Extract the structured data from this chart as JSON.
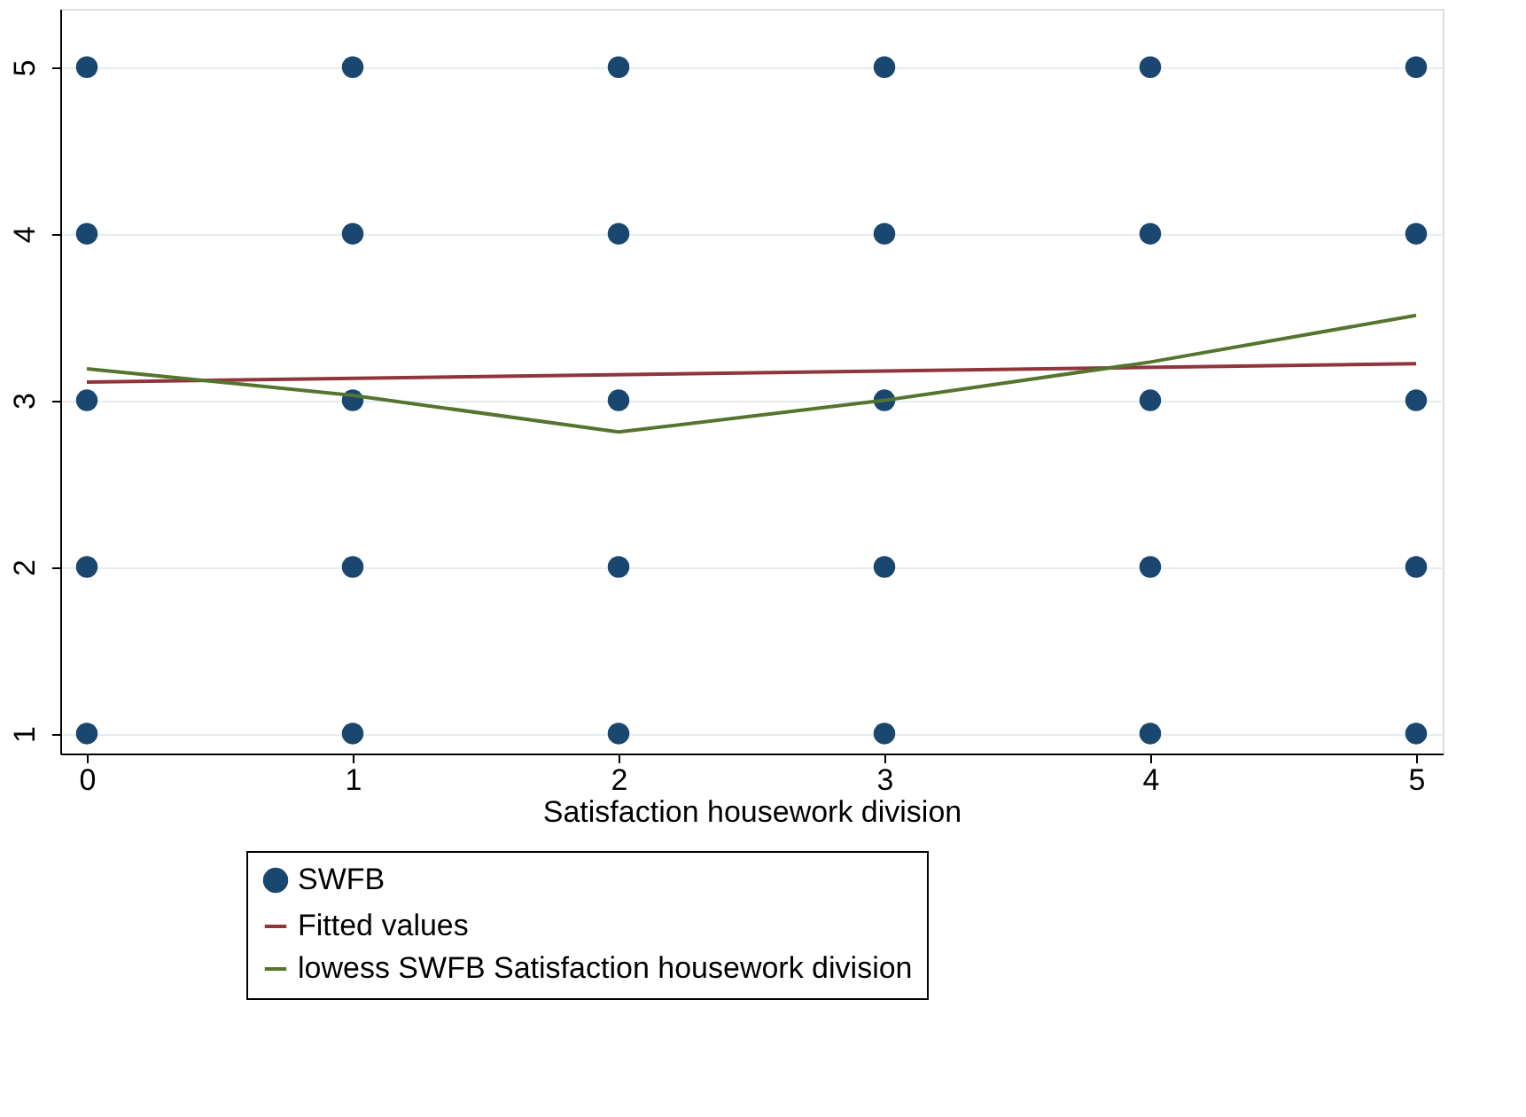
{
  "chart_data": {
    "type": "scatter",
    "xlabel": "Satisfaction housework division",
    "xlim": [
      -0.1,
      5.1
    ],
    "xticks": [
      0,
      1,
      2,
      3,
      4,
      5
    ],
    "ylim": [
      0.88,
      5.35
    ],
    "yticks": [
      1,
      2,
      3,
      4,
      5
    ],
    "grid": "y",
    "legend": "bottom",
    "series": [
      {
        "name": "SWFB",
        "marker": "circle",
        "color": "#1a476f",
        "x": [
          0,
          0,
          0,
          0,
          0,
          1,
          1,
          1,
          1,
          1,
          2,
          2,
          2,
          2,
          2,
          3,
          3,
          3,
          3,
          3,
          4,
          4,
          4,
          4,
          4,
          5,
          5,
          5,
          5,
          5
        ],
        "values": [
          1,
          2,
          3,
          4,
          5,
          1,
          2,
          3,
          4,
          5,
          1,
          2,
          3,
          4,
          5,
          1,
          2,
          3,
          4,
          5,
          1,
          2,
          3,
          4,
          5,
          1,
          2,
          3,
          4,
          5
        ]
      },
      {
        "name": "Fitted values",
        "type": "line",
        "marker": "none",
        "line_style": "solid",
        "color": "#90353b",
        "x": [
          0,
          5
        ],
        "values": [
          3.11,
          3.22
        ]
      },
      {
        "name": "lowess SWFB Satisfaction housework division",
        "type": "line",
        "marker": "none",
        "line_style": "solid",
        "color": "#55752f",
        "x": [
          0,
          1,
          2,
          3,
          4,
          5
        ],
        "values": [
          3.19,
          3.03,
          2.81,
          3.0,
          3.23,
          3.51
        ]
      }
    ]
  }
}
